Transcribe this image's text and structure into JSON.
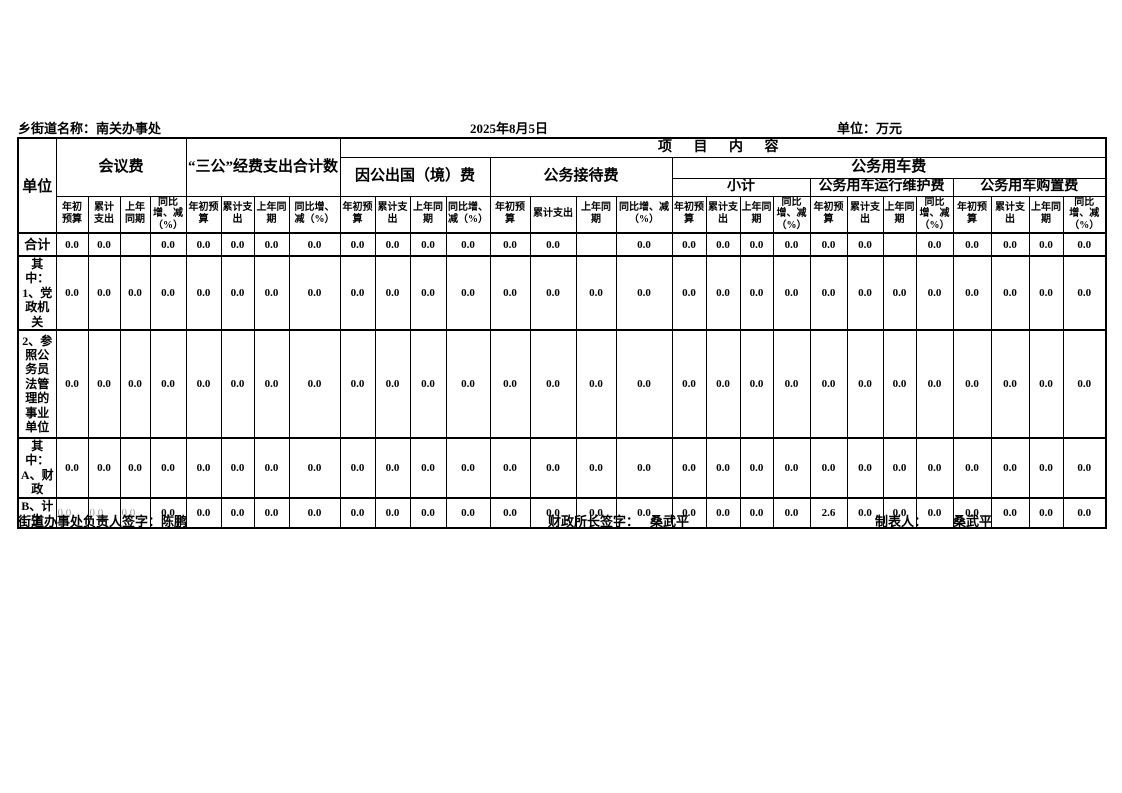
{
  "meta": {
    "name_label": "乡街道名称：南关办事处",
    "date": "2025年8月5日",
    "unit_label": "单位：万元"
  },
  "table": {
    "corner_label": "单位",
    "project_header": "项 目 内 容",
    "groups": {
      "meeting": "会议费",
      "three_public_total": "“三公”经费支出合计数",
      "abroad": "因公出国（境）费",
      "reception": "公务接待费",
      "vehicle": "公务用车费",
      "vehicle_children": [
        "小计",
        "公务用车运行维护费",
        "公务用车购置费"
      ]
    },
    "sub_headers": [
      "年初预算",
      "累计支出",
      "上年同期",
      "同比增、减（%）"
    ],
    "rows": [
      {
        "label": "合计",
        "center": true,
        "values": [
          "0.0",
          "0.0",
          "",
          "0.0",
          "0.0",
          "0.0",
          "0.0",
          "0.0",
          "0.0",
          "0.0",
          "0.0",
          "0.0",
          "0.0",
          "0.0",
          "",
          "0.0",
          "0.0",
          "0.0",
          "0.0",
          "0.0",
          "0.0",
          "0.0",
          "",
          "0.0",
          "0.0",
          "0.0",
          "0.0",
          "0.0"
        ]
      },
      {
        "label": "其中：1、党政机关",
        "values": [
          "0.0",
          "0.0",
          "0.0",
          "0.0",
          "0.0",
          "0.0",
          "0.0",
          "0.0",
          "0.0",
          "0.0",
          "0.0",
          "0.0",
          "0.0",
          "0.0",
          "0.0",
          "0.0",
          "0.0",
          "0.0",
          "0.0",
          "0.0",
          "0.0",
          "0.0",
          "0.0",
          "0.0",
          "0.0",
          "0.0",
          "0.0",
          "0.0"
        ]
      },
      {
        "label": "2、参照公务员法管理的事业单位",
        "values": [
          "0.0",
          "0.0",
          "0.0",
          "0.0",
          "0.0",
          "0.0",
          "0.0",
          "0.0",
          "0.0",
          "0.0",
          "0.0",
          "0.0",
          "0.0",
          "0.0",
          "0.0",
          "0.0",
          "0.0",
          "0.0",
          "0.0",
          "0.0",
          "0.0",
          "0.0",
          "0.0",
          "0.0",
          "0.0",
          "0.0",
          "0.0",
          "0.0"
        ]
      },
      {
        "label": "其中：A、财政",
        "values": [
          "0.0",
          "0.0",
          "0.0",
          "0.0",
          "0.0",
          "0.0",
          "0.0",
          "0.0",
          "0.0",
          "0.0",
          "0.0",
          "0.0",
          "0.0",
          "0.0",
          "0.0",
          "0.0",
          "0.0",
          "0.0",
          "0.0",
          "0.0",
          "0.0",
          "0.0",
          "0.0",
          "0.0",
          "0.0",
          "0.0",
          "0.0",
          "0.0"
        ]
      },
      {
        "label": "B、计生",
        "muted_cells": [
          0,
          1,
          2
        ],
        "values": [
          "0.0",
          "0.0",
          "0.0",
          "0.0",
          "0.0",
          "0.0",
          "0.0",
          "0.0",
          "0.0",
          "0.0",
          "0.0",
          "0.0",
          "0.0",
          "0.0",
          "0.0",
          "0.0",
          "0.0",
          "0.0",
          "0.0",
          "0.0",
          "2.6",
          "0.0",
          "0.0",
          "0.0",
          "0.0",
          "0.0",
          "0.0",
          "0.0"
        ]
      }
    ]
  },
  "footer": {
    "manager_signature": "街道办事处负责人签字：陈鹏",
    "finance_label": "财政所长签字：",
    "finance_name": "桑武平",
    "preparer_label": "制表人：",
    "preparer_name": "桑武平"
  }
}
